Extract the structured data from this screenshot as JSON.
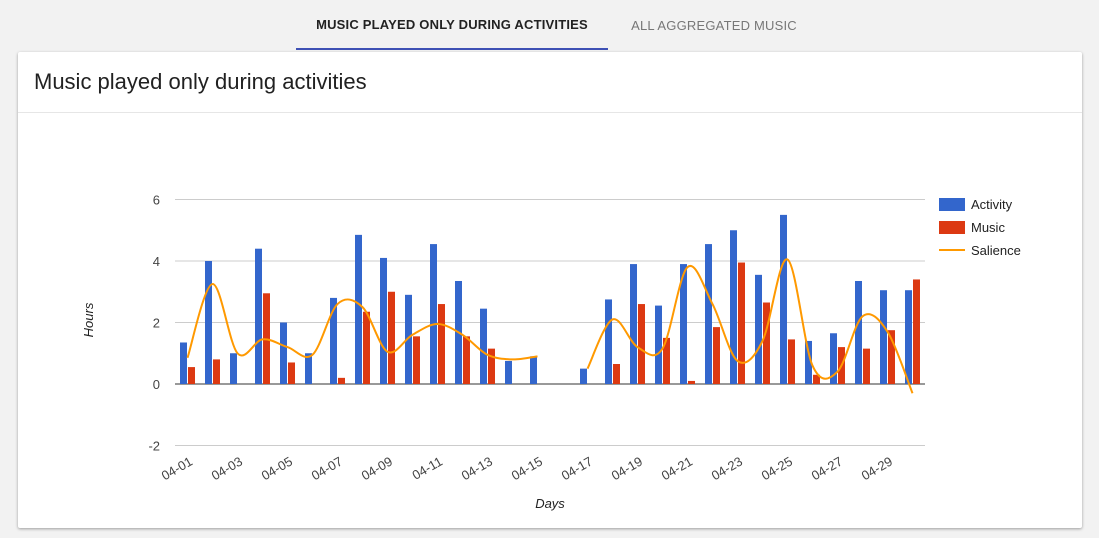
{
  "tabs": [
    {
      "label": "MUSIC PLAYED ONLY DURING ACTIVITIES",
      "active": true
    },
    {
      "label": "ALL AGGREGATED MUSIC",
      "active": false
    }
  ],
  "card": {
    "title": "Music played only during activities"
  },
  "colors": {
    "activity": "#3366cc",
    "music": "#dc3912",
    "salience": "#ff9900",
    "tab_indicator": "#3f51b5"
  },
  "chart_data": {
    "type": "bar",
    "xlabel": "Days",
    "ylabel": "Hours",
    "ylim": [
      -2,
      6
    ],
    "yticks": [
      -2,
      0,
      2,
      4,
      6
    ],
    "grid": true,
    "legend_position": "right",
    "categories": [
      "04-01",
      "04-02",
      "04-03",
      "04-04",
      "04-05",
      "04-06",
      "04-07",
      "04-08",
      "04-09",
      "04-10",
      "04-11",
      "04-12",
      "04-13",
      "04-14",
      "04-15",
      "04-16",
      "04-17",
      "04-18",
      "04-19",
      "04-20",
      "04-21",
      "04-22",
      "04-23",
      "04-24",
      "04-25",
      "04-26",
      "04-27",
      "04-28",
      "04-29",
      "04-30"
    ],
    "tick_labels": [
      "04-01",
      "04-03",
      "04-05",
      "04-07",
      "04-09",
      "04-11",
      "04-13",
      "04-15",
      "04-17",
      "04-19",
      "04-21",
      "04-23",
      "04-25",
      "04-27",
      "04-29"
    ],
    "series": [
      {
        "name": "Activity",
        "type": "bar",
        "values": [
          1.35,
          4.0,
          1.0,
          4.4,
          2.0,
          1.0,
          2.8,
          4.85,
          4.1,
          2.9,
          4.55,
          3.35,
          2.45,
          0.75,
          0.9,
          null,
          0.5,
          2.75,
          3.9,
          2.55,
          3.9,
          4.55,
          5.0,
          3.55,
          5.5,
          1.4,
          1.65,
          3.35,
          3.05,
          3.05
        ]
      },
      {
        "name": "Music",
        "type": "bar",
        "values": [
          0.55,
          0.8,
          0,
          2.95,
          0.7,
          0,
          0.2,
          2.35,
          3.0,
          1.55,
          2.6,
          1.55,
          1.15,
          0,
          0,
          null,
          0,
          0.65,
          2.6,
          1.5,
          0.1,
          1.85,
          3.95,
          2.65,
          1.45,
          0.3,
          1.2,
          1.15,
          1.75,
          3.4
        ]
      },
      {
        "name": "Salience",
        "type": "line",
        "values": [
          0.85,
          3.25,
          1.0,
          1.45,
          1.2,
          0.95,
          2.6,
          2.5,
          1.05,
          1.6,
          1.95,
          1.6,
          0.95,
          0.8,
          0.9,
          null,
          0.5,
          2.1,
          1.2,
          1.15,
          3.8,
          2.6,
          0.75,
          1.4,
          4.05,
          0.6,
          0.4,
          2.2,
          1.7,
          -0.3
        ]
      }
    ]
  }
}
